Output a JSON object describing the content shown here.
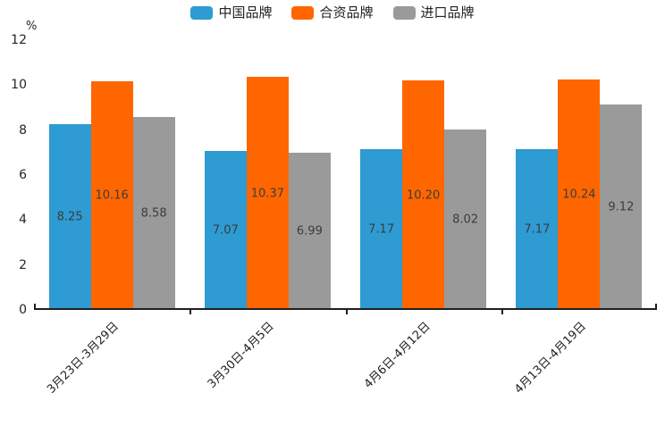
{
  "chart_data": {
    "type": "bar",
    "title": "",
    "categories": [
      "3月23日-3月29日",
      "3月30日-4月5日",
      "4月6日-4月12日",
      "4月13日-4月19日"
    ],
    "series": [
      {
        "name": "中国品牌",
        "color": "#2E9BD2",
        "values": [
          8.25,
          7.07,
          7.17,
          7.17
        ]
      },
      {
        "name": "合资品牌",
        "color": "#FF6600",
        "values": [
          10.16,
          10.37,
          10.2,
          10.24
        ]
      },
      {
        "name": "进口品牌",
        "color": "#9A9A9A",
        "values": [
          8.58,
          6.99,
          8.02,
          9.12
        ]
      }
    ],
    "value_label_decimals": 2,
    "y_axis": {
      "min": 0,
      "max": 12,
      "tick_interval": 2,
      "ticks": [
        0,
        2,
        4,
        6,
        8,
        10,
        12
      ],
      "label": "%"
    },
    "legend": {
      "position": "top"
    },
    "grid": false,
    "background": "#ffffff",
    "axis_color": "#1f1f1f"
  }
}
